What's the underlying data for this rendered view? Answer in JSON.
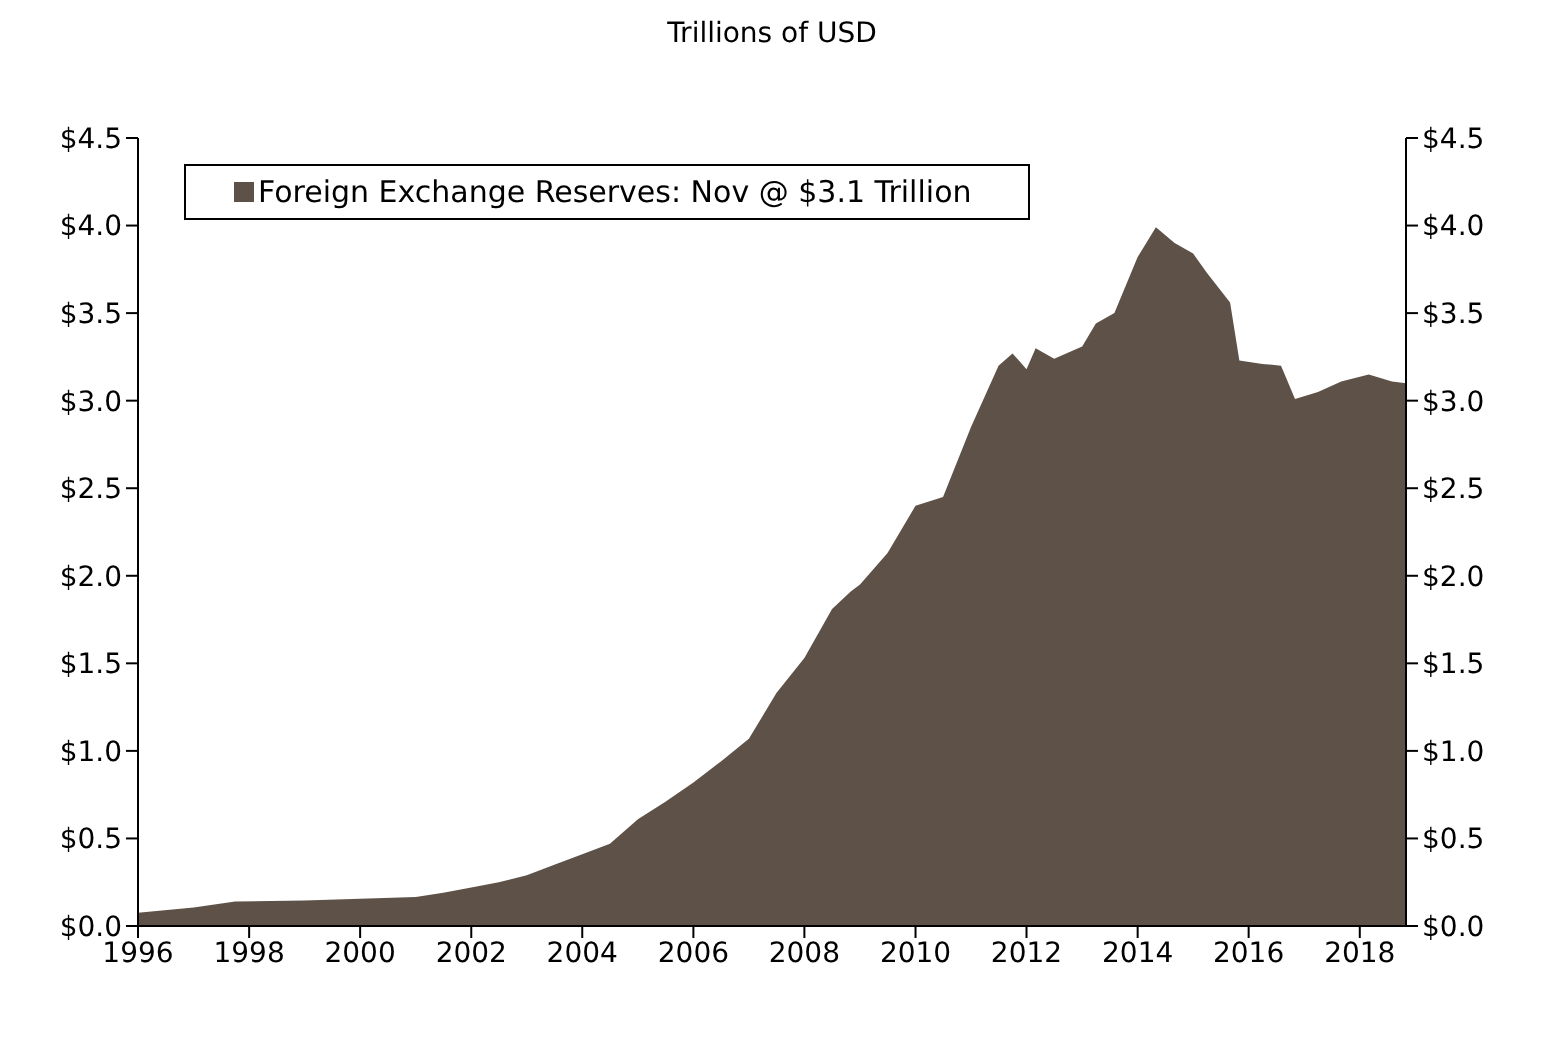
{
  "chart_data": {
    "type": "area",
    "title": "Trillions of USD",
    "x": [
      "1996-01",
      "1997-01",
      "1997-10",
      "1999-01",
      "2000-01",
      "2001-01",
      "2001-07",
      "2002-01",
      "2002-07",
      "2003-01",
      "2003-07",
      "2004-01",
      "2004-07",
      "2005-01",
      "2005-07",
      "2006-01",
      "2006-07",
      "2007-01",
      "2007-07",
      "2008-01",
      "2008-07",
      "2008-11",
      "2009-01",
      "2009-07",
      "2010-01",
      "2010-07",
      "2011-01",
      "2011-07",
      "2011-10",
      "2012-01",
      "2012-03",
      "2012-07",
      "2013-01",
      "2013-04",
      "2013-08",
      "2014-01",
      "2014-05",
      "2014-09",
      "2015-01",
      "2015-04",
      "2015-09",
      "2015-11",
      "2016-04",
      "2016-08",
      "2016-11",
      "2017-04",
      "2017-09",
      "2018-03",
      "2018-08",
      "2018-11"
    ],
    "series": [
      {
        "name": "Foreign Exchange Reserves: Nov @ $3.1 Trillion",
        "color": "#5e5248",
        "values": [
          0.075,
          0.105,
          0.14,
          0.145,
          0.155,
          0.165,
          0.19,
          0.22,
          0.25,
          0.29,
          0.35,
          0.41,
          0.47,
          0.61,
          0.71,
          0.82,
          0.94,
          1.07,
          1.33,
          1.53,
          1.81,
          1.91,
          1.95,
          2.13,
          2.4,
          2.45,
          2.85,
          3.2,
          3.27,
          3.18,
          3.3,
          3.24,
          3.31,
          3.44,
          3.5,
          3.82,
          3.99,
          3.9,
          3.84,
          3.73,
          3.56,
          3.23,
          3.21,
          3.2,
          3.01,
          3.05,
          3.11,
          3.15,
          3.11,
          3.1
        ]
      }
    ],
    "xlim": [
      "1996-01",
      "2018-11"
    ],
    "xticks": [
      "1996",
      "1998",
      "2000",
      "2002",
      "2004",
      "2006",
      "2008",
      "2010",
      "2012",
      "2014",
      "2016",
      "2018"
    ],
    "ylim": [
      0,
      4.5
    ],
    "yticks": [
      {
        "value": 0,
        "label": "$0.0"
      },
      {
        "value": 0.5,
        "label": "$0.5"
      },
      {
        "value": 1,
        "label": "$1.0"
      },
      {
        "value": 1.5,
        "label": "$1.5"
      },
      {
        "value": 2,
        "label": "$2.0"
      },
      {
        "value": 2.5,
        "label": "$2.5"
      },
      {
        "value": 3,
        "label": "$3.0"
      },
      {
        "value": 3.5,
        "label": "$3.5"
      },
      {
        "value": 4,
        "label": "$4.0"
      },
      {
        "value": 4.5,
        "label": "$4.5"
      }
    ],
    "y2lim": [
      0,
      4.5
    ],
    "y2ticks": [
      {
        "value": 0,
        "label": "$0.0"
      },
      {
        "value": 0.5,
        "label": "$0.5"
      },
      {
        "value": 1,
        "label": "$1.0"
      },
      {
        "value": 1.5,
        "label": "$1.5"
      },
      {
        "value": 2,
        "label": "$2.0"
      },
      {
        "value": 2.5,
        "label": "$2.5"
      },
      {
        "value": 3,
        "label": "$3.0"
      },
      {
        "value": 3.5,
        "label": "$3.5"
      },
      {
        "value": 4,
        "label": "$4.0"
      },
      {
        "value": 4.5,
        "label": "$4.5"
      }
    ],
    "legend": "top left",
    "grid": false
  }
}
